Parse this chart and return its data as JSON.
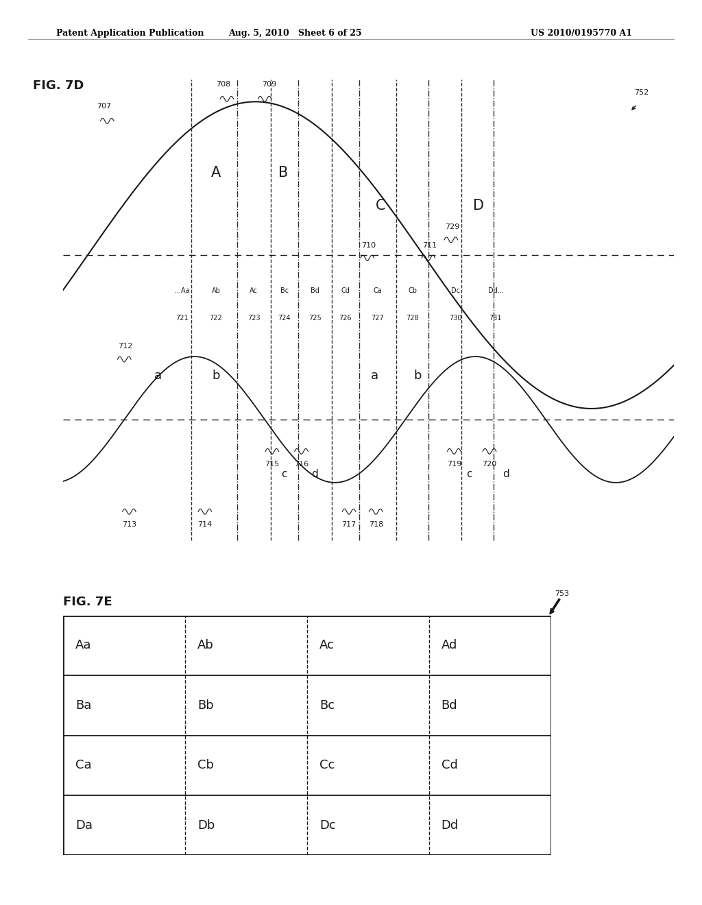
{
  "header_left": "Patent Application Publication",
  "header_mid": "Aug. 5, 2010   Sheet 6 of 25",
  "header_right": "US 2010/0195770 A1",
  "fig7d_label": "FIG. 7D",
  "fig7e_label": "FIG. 7E",
  "bg_color": "#ffffff",
  "line_color": "#1a1a1a",
  "table_data": [
    [
      "Aa",
      "Ab",
      "Ac",
      "Ad"
    ],
    [
      "Ba",
      "Bb",
      "Bc",
      "Bd"
    ],
    [
      "Ca",
      "Cb",
      "Cc",
      "Cd"
    ],
    [
      "Da",
      "Db",
      "Dc",
      "Dd"
    ]
  ]
}
